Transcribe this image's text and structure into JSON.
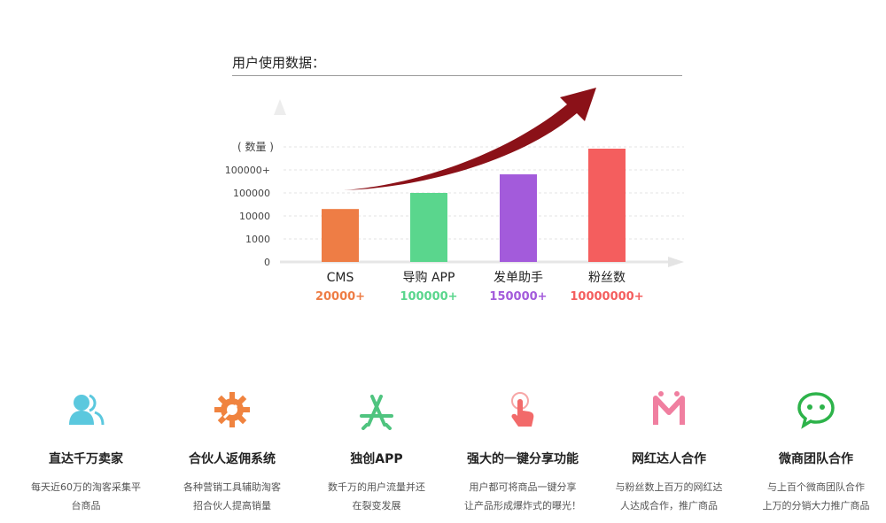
{
  "heading": "用户使用数据：",
  "chart_data": {
    "type": "bar",
    "ylabel": "( 数量 )",
    "yticks": [
      "0",
      "1000",
      "10000",
      "100000",
      "100000+"
    ],
    "categories": [
      "CMS",
      "导购 APP",
      "发单助手",
      "粉丝数"
    ],
    "values": [
      20000,
      100000,
      150000,
      10000000
    ],
    "value_labels": [
      "20000+",
      "100000+",
      "150000+",
      "10000000+"
    ],
    "colors": [
      "#EE7D45",
      "#5AD68D",
      "#A35BDB",
      "#F45E5E"
    ],
    "arrow_color": "#8B1118",
    "grid": true
  },
  "features": [
    {
      "icon": "users-icon",
      "color": "#5BC8DE",
      "title": "直达千万卖家",
      "desc": [
        "每天近60万的淘客采集平",
        "台商品"
      ]
    },
    {
      "icon": "gear-wrench-icon",
      "color": "#F0833F",
      "title": "合伙人返佣系统",
      "desc": [
        "各种营销工具辅助淘客",
        "招合伙人提高销量"
      ]
    },
    {
      "icon": "app-store-icon",
      "color": "#4FC47F",
      "title": "独创APP",
      "desc": [
        "数千万的用户流量并还",
        "在裂变发展"
      ]
    },
    {
      "icon": "hand-tap-icon",
      "color": "#F26A6A",
      "title": "强大的一键分享功能",
      "desc": [
        "用户都可将商品一键分享",
        "让产品形成爆炸式的曝光！"
      ]
    },
    {
      "icon": "influencer-logo-icon",
      "color": "#F07FA0",
      "title": "网红达人合作",
      "desc": [
        "与粉丝数上百万的网红达",
        "人达成合作，推广商品"
      ]
    },
    {
      "icon": "wechat-icon",
      "color": "#2DB34A",
      "title": "微商团队合作",
      "desc": [
        "与上百个微商团队合作",
        "上万的分销大力推广商品"
      ]
    }
  ]
}
